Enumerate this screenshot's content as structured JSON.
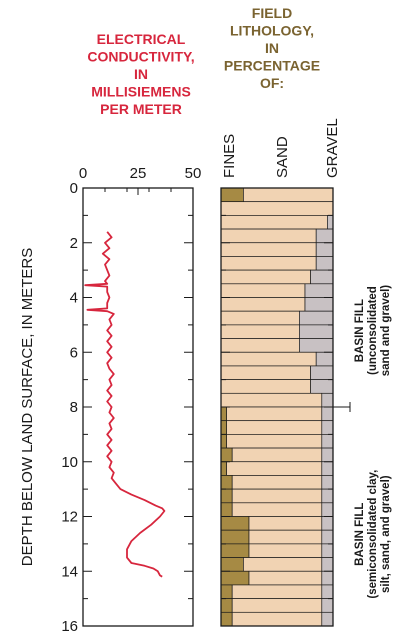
{
  "chart_data": [
    {
      "type": "line",
      "title": [
        "ELECTRICAL",
        "CONDUCTIVITY,",
        "IN",
        "MILLISIEMENS",
        "PER METER"
      ],
      "ylabel": "DEPTH BELOW LAND SURFACE, IN METERS",
      "xlim": [
        0,
        50
      ],
      "ylim": [
        0,
        16
      ],
      "y_inverted": true,
      "x_ticks": [
        "0",
        "25",
        "50"
      ],
      "y_ticks": [
        "0",
        "2",
        "4",
        "6",
        "8",
        "10",
        "12",
        "14",
        "16"
      ],
      "colors": {
        "line": "#d7263d",
        "title": "#d7263d"
      },
      "series": [
        {
          "points": [
            [
              11,
              1.6
            ],
            [
              13,
              1.8
            ],
            [
              10,
              2.0
            ],
            [
              12,
              2.2
            ],
            [
              9,
              2.4
            ],
            [
              12,
              2.6
            ],
            [
              10,
              2.8
            ],
            [
              11,
              3.0
            ],
            [
              12,
              3.2
            ],
            [
              10,
              3.4
            ],
            [
              11,
              3.5
            ],
            [
              1,
              3.55
            ],
            [
              11,
              3.6
            ],
            [
              11,
              3.8
            ],
            [
              12,
              4.0
            ],
            [
              11,
              4.2
            ],
            [
              11,
              4.4
            ],
            [
              2,
              4.45
            ],
            [
              11,
              4.5
            ],
            [
              14,
              4.6
            ],
            [
              12,
              4.8
            ],
            [
              13,
              5.0
            ],
            [
              11,
              5.2
            ],
            [
              13,
              5.4
            ],
            [
              11,
              5.6
            ],
            [
              13,
              5.8
            ],
            [
              11,
              6.0
            ],
            [
              13,
              6.2
            ],
            [
              11,
              6.4
            ],
            [
              12,
              6.6
            ],
            [
              14,
              6.8
            ],
            [
              12,
              7.0
            ],
            [
              13,
              7.2
            ],
            [
              11,
              7.4
            ],
            [
              13,
              7.6
            ],
            [
              11,
              7.8
            ],
            [
              13,
              8.0
            ],
            [
              12,
              8.2
            ],
            [
              14,
              8.4
            ],
            [
              12,
              8.6
            ],
            [
              13,
              8.8
            ],
            [
              11,
              9.0
            ],
            [
              13,
              9.2
            ],
            [
              11,
              9.4
            ],
            [
              13,
              9.6
            ],
            [
              11,
              9.8
            ],
            [
              13,
              10.0
            ],
            [
              12,
              10.2
            ],
            [
              14,
              10.4
            ],
            [
              13,
              10.6
            ],
            [
              15,
              10.8
            ],
            [
              17,
              11.0
            ],
            [
              22,
              11.2
            ],
            [
              28,
              11.4
            ],
            [
              33,
              11.6
            ],
            [
              36,
              11.7
            ],
            [
              37,
              11.8
            ],
            [
              35,
              12.0
            ],
            [
              31,
              12.3
            ],
            [
              26,
              12.6
            ],
            [
              22,
              12.9
            ],
            [
              20,
              13.2
            ],
            [
              20,
              13.5
            ],
            [
              22,
              13.7
            ],
            [
              28,
              13.8
            ],
            [
              32,
              13.9
            ],
            [
              34,
              14.0
            ],
            [
              35,
              14.15
            ],
            [
              36,
              14.2
            ]
          ]
        }
      ]
    },
    {
      "type": "bar",
      "title": [
        "FIELD",
        "LITHOLOGY,",
        "IN",
        "PERCENTAGE",
        "OF:"
      ],
      "ylabel": "DEPTH BELOW LAND SURFACE, IN METERS",
      "categories": [
        "FINES",
        "SAND",
        "GRAVEL"
      ],
      "ylim": [
        0,
        16
      ],
      "y_inverted": true,
      "colors": {
        "fines": "#a68a44",
        "sand": "#f1d3b3",
        "gravel": "#c8c1c3",
        "title": "#7a6330"
      },
      "interval_thickness_m": 0.5,
      "fines": [
        20,
        0,
        0,
        0,
        0,
        0,
        0,
        0,
        0,
        0,
        0,
        0,
        0,
        0,
        0,
        0,
        5,
        5,
        5,
        10,
        5,
        10,
        10,
        10,
        25,
        25,
        25,
        20,
        25,
        10,
        10,
        10
      ],
      "gravel": [
        0,
        0,
        5,
        15,
        15,
        15,
        20,
        25,
        25,
        30,
        30,
        30,
        15,
        20,
        20,
        10,
        10,
        10,
        10,
        10,
        10,
        10,
        10,
        10,
        10,
        10,
        10,
        10,
        10,
        10,
        10,
        10
      ],
      "annotations": [
        {
          "title": "BASIN FILL",
          "subtitle": [
            "(unconsolidated",
            "sand and gravel)"
          ]
        },
        {
          "title": "BASIN FILL",
          "subtitle": [
            "(semiconsolidated clay,",
            "silt, sand, and gravel)"
          ]
        }
      ],
      "boundary_depth_m": 8
    }
  ]
}
